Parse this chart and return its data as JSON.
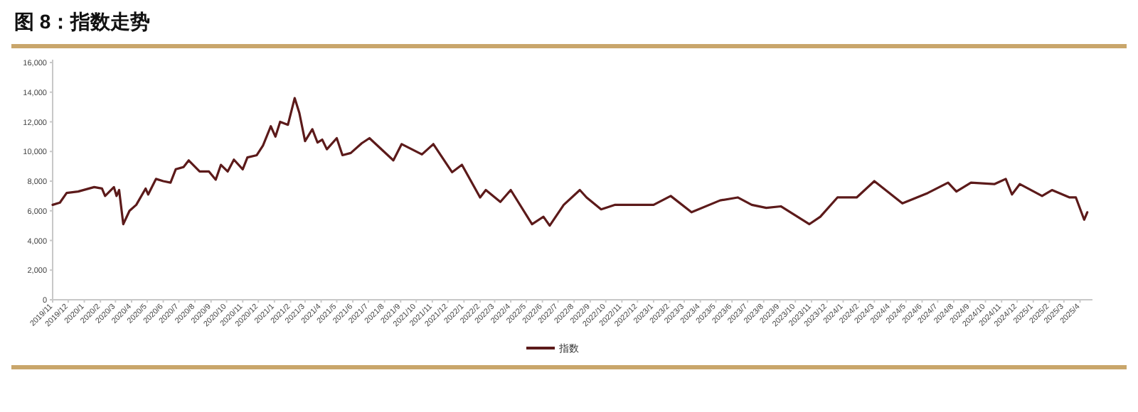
{
  "chart_data": {
    "type": "line",
    "title": "图 8：指数走势",
    "x": [
      "2019-11-01",
      "2019-11-15",
      "2019-11-28",
      "2019-12-20",
      "2020-01-20",
      "2020-02-04",
      "2020-02-10",
      "2020-02-27",
      "2020-03-03",
      "2020-03-08",
      "2020-03-16",
      "2020-03-28",
      "2020-04-10",
      "2020-04-28",
      "2020-05-03",
      "2020-05-18",
      "2020-06-01",
      "2020-06-15",
      "2020-06-25",
      "2020-07-10",
      "2020-07-20",
      "2020-08-10",
      "2020-08-28",
      "2020-09-10",
      "2020-09-20",
      "2020-10-03",
      "2020-10-15",
      "2020-11-01",
      "2020-11-10",
      "2020-11-28",
      "2020-12-10",
      "2020-12-25",
      "2021-01-03",
      "2021-01-12",
      "2021-01-27",
      "2021-02-09",
      "2021-02-18",
      "2021-03-01",
      "2021-03-15",
      "2021-03-25",
      "2021-04-03",
      "2021-04-12",
      "2021-05-01",
      "2021-05-12",
      "2021-05-28",
      "2021-06-18",
      "2021-07-03",
      "2021-08-18",
      "2021-09-03",
      "2021-10-12",
      "2021-11-03",
      "2021-12-09",
      "2021-12-28",
      "2022-02-01",
      "2022-02-12",
      "2022-03-12",
      "2022-04-01",
      "2022-05-12",
      "2022-06-03",
      "2022-06-15",
      "2022-07-12",
      "2022-08-12",
      "2022-08-25",
      "2022-09-22",
      "2022-10-18",
      "2022-11-27",
      "2023-01-01",
      "2023-02-03",
      "2023-03-15",
      "2023-05-09",
      "2023-06-12",
      "2023-07-09",
      "2023-08-06",
      "2023-09-03",
      "2023-10-28",
      "2023-11-18",
      "2023-12-21",
      "2024-01-27",
      "2024-03-01",
      "2024-04-24",
      "2024-06-12",
      "2024-07-21",
      "2024-08-06",
      "2024-09-03",
      "2024-10-18",
      "2024-11-09",
      "2024-11-21",
      "2024-12-06",
      "2025-01-18",
      "2025-02-06",
      "2025-03-12",
      "2025-03-24",
      "2025-04-09",
      "2025-04-15"
    ],
    "series": [
      {
        "name": "指数",
        "color": "#5c1a1a",
        "values": [
          6400,
          6550,
          7200,
          7300,
          7600,
          7500,
          7000,
          7600,
          7000,
          7400,
          5100,
          6000,
          6400,
          7500,
          7100,
          8150,
          8000,
          7900,
          8800,
          8950,
          9400,
          8650,
          8650,
          8100,
          9100,
          8650,
          9450,
          8800,
          9600,
          9750,
          10400,
          11700,
          11000,
          12000,
          11800,
          13600,
          12600,
          10700,
          11500,
          10600,
          10800,
          10150,
          10900,
          9750,
          9900,
          10550,
          10900,
          9400,
          10500,
          9800,
          10500,
          8600,
          9100,
          6900,
          7400,
          6600,
          7400,
          5100,
          5600,
          5000,
          6400,
          7400,
          6900,
          6100,
          6400,
          6400,
          6400,
          7000,
          5900,
          6700,
          6900,
          6400,
          6200,
          6300,
          5100,
          5600,
          6900,
          6900,
          8000,
          6500,
          7200,
          7900,
          7300,
          7900,
          7800,
          8150,
          7100,
          7800,
          7000,
          7400,
          6900,
          6900,
          5400,
          5900
        ]
      }
    ],
    "xlim": [
      "2019-11-01",
      "2025-04-25"
    ],
    "xticks": [
      {
        "value": "2019-11",
        "label": "2019/11"
      },
      {
        "value": "2019-12",
        "label": "2019/12"
      },
      {
        "value": "2020-01",
        "label": "2020/1"
      },
      {
        "value": "2020-02",
        "label": "2020/2"
      },
      {
        "value": "2020-03",
        "label": "2020/3"
      },
      {
        "value": "2020-04",
        "label": "2020/4"
      },
      {
        "value": "2020-05",
        "label": "2020/5"
      },
      {
        "value": "2020-06",
        "label": "2020/6"
      },
      {
        "value": "2020-07",
        "label": "2020/7"
      },
      {
        "value": "2020-08",
        "label": "2020/8"
      },
      {
        "value": "2020-09",
        "label": "2020/9"
      },
      {
        "value": "2020-10",
        "label": "2020/10"
      },
      {
        "value": "2020-11",
        "label": "2020/11"
      },
      {
        "value": "2020-12",
        "label": "2020/12"
      },
      {
        "value": "2021-01",
        "label": "2021/1"
      },
      {
        "value": "2021-02",
        "label": "2021/2"
      },
      {
        "value": "2021-03",
        "label": "2021/3"
      },
      {
        "value": "2021-04",
        "label": "2021/4"
      },
      {
        "value": "2021-05",
        "label": "2021/5"
      },
      {
        "value": "2021-06",
        "label": "2021/6"
      },
      {
        "value": "2021-07",
        "label": "2021/7"
      },
      {
        "value": "2021-08",
        "label": "2021/8"
      },
      {
        "value": "2021-09",
        "label": "2021/9"
      },
      {
        "value": "2021-10",
        "label": "2021/10"
      },
      {
        "value": "2021-11",
        "label": "2021/11"
      },
      {
        "value": "2021-12",
        "label": "2021/12"
      },
      {
        "value": "2022-01",
        "label": "2022/1"
      },
      {
        "value": "2022-02",
        "label": "2022/2"
      },
      {
        "value": "2022-03",
        "label": "2022/3"
      },
      {
        "value": "2022-04",
        "label": "2022/4"
      },
      {
        "value": "2022-05",
        "label": "2022/5"
      },
      {
        "value": "2022-06",
        "label": "2022/6"
      },
      {
        "value": "2022-07",
        "label": "2022/7"
      },
      {
        "value": "2022-08",
        "label": "2022/8"
      },
      {
        "value": "2022-09",
        "label": "2022/9"
      },
      {
        "value": "2022-10",
        "label": "2022/10"
      },
      {
        "value": "2022-11",
        "label": "2022/11"
      },
      {
        "value": "2022-12",
        "label": "2022/12"
      },
      {
        "value": "2023-01",
        "label": "2023/1"
      },
      {
        "value": "2023-02",
        "label": "2023/2"
      },
      {
        "value": "2023-03",
        "label": "2023/3"
      },
      {
        "value": "2023-04",
        "label": "2023/4"
      },
      {
        "value": "2023-05",
        "label": "2023/5"
      },
      {
        "value": "2023-06",
        "label": "2023/6"
      },
      {
        "value": "2023-07",
        "label": "2023/7"
      },
      {
        "value": "2023-08",
        "label": "2023/8"
      },
      {
        "value": "2023-09",
        "label": "2023/9"
      },
      {
        "value": "2023-10",
        "label": "2023/10"
      },
      {
        "value": "2023-11",
        "label": "2023/11"
      },
      {
        "value": "2023-12",
        "label": "2023/12"
      },
      {
        "value": "2024-01",
        "label": "2024/1"
      },
      {
        "value": "2024-02",
        "label": "2024/2"
      },
      {
        "value": "2024-03",
        "label": "2024/3"
      },
      {
        "value": "2024-04",
        "label": "2024/4"
      },
      {
        "value": "2024-05",
        "label": "2024/5"
      },
      {
        "value": "2024-06",
        "label": "2024/6"
      },
      {
        "value": "2024-07",
        "label": "2024/7"
      },
      {
        "value": "2024-08",
        "label": "2024/8"
      },
      {
        "value": "2024-09",
        "label": "2024/9"
      },
      {
        "value": "2024-10",
        "label": "2024/10"
      },
      {
        "value": "2024-11",
        "label": "2024/11"
      },
      {
        "value": "2024-12",
        "label": "2024/12"
      },
      {
        "value": "2025-01",
        "label": "2025/1"
      },
      {
        "value": "2025-02",
        "label": "2025/2"
      },
      {
        "value": "2025-03",
        "label": "2025/3"
      },
      {
        "value": "2025-04",
        "label": "2025/4"
      }
    ],
    "ylim": [
      0,
      16000
    ],
    "yticks": [
      0,
      {
        "value": 2000,
        "label": "2,000"
      },
      {
        "value": 4000,
        "label": "4,000"
      },
      {
        "value": 6000,
        "label": "6,000"
      },
      {
        "value": 8000,
        "label": "8,000"
      },
      {
        "value": 10000,
        "label": "10,000"
      },
      {
        "value": 12000,
        "label": "12,000"
      },
      {
        "value": 14000,
        "label": "14,000"
      },
      {
        "value": 16000,
        "label": "16,000"
      }
    ],
    "grid": false,
    "legend": "bottom",
    "marker": "none",
    "line_style": "solid"
  }
}
